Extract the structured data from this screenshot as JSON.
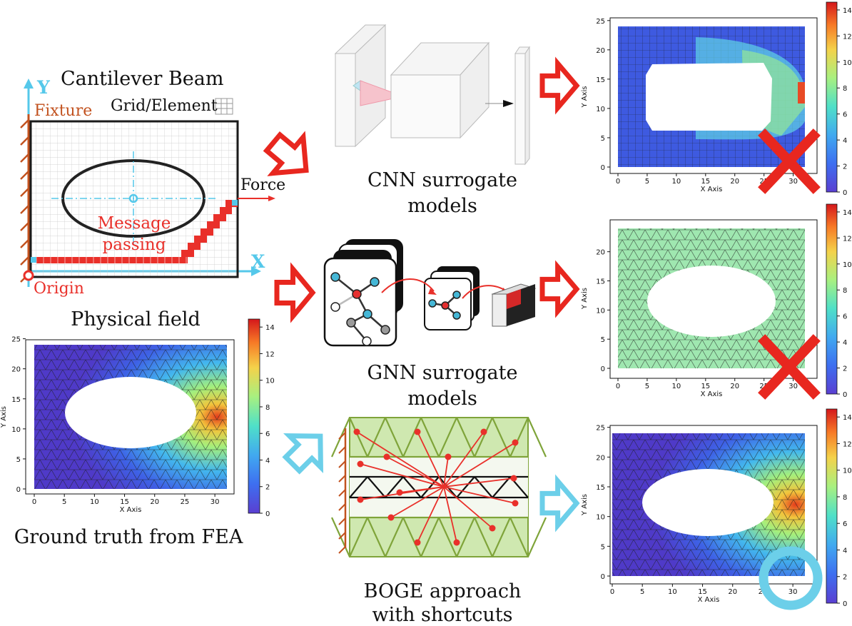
{
  "beam": {
    "title": "Cantilever Beam",
    "y_axis": "Y",
    "x_axis": "X",
    "fixture": "Fixture",
    "grid_element": "Grid/Element",
    "force": "Force",
    "message_line1": "Message",
    "message_line2": "passing",
    "origin": "Origin"
  },
  "physical_field": "Physical field",
  "ground_truth": "Ground truth from FEA",
  "cnn": {
    "line1": "CNN surrogate",
    "line2": "models"
  },
  "gnn": {
    "line1": "GNN surrogate",
    "line2": "models"
  },
  "boge": {
    "line1": "BOGE approach",
    "line2": "with shortcuts"
  },
  "colors": {
    "red_arrow": "#e8271f",
    "blue_arrow": "#6ccfe9",
    "beam_red": "#e9302a",
    "axis_blue": "#55c8ea",
    "fixture_brown": "#c2521f",
    "mesh_green": "#7fa43a"
  },
  "chart_data": [
    {
      "type": "heatmap",
      "description_id": "ground-truth-field",
      "xlabel": "X Axis",
      "ylabel": "Y Axis",
      "xticks": [
        0,
        5,
        10,
        15,
        20,
        25,
        30
      ],
      "yticks": [
        0,
        5,
        10,
        15,
        20,
        25
      ],
      "xlim": [
        0,
        32
      ],
      "ylim": [
        0,
        24
      ],
      "colorbar_ticks": [
        0,
        2,
        4,
        6,
        8,
        10,
        12,
        14
      ],
      "colorbar_range": [
        0,
        14.5
      ],
      "hole": {
        "cx": 16,
        "cy": 12,
        "rx": 10.5,
        "ry": 6
      },
      "mesh": "triangular"
    },
    {
      "type": "heatmap",
      "description_id": "cnn-prediction",
      "xlabel": "X Axis",
      "ylabel": "Y Axis",
      "xticks": [
        0,
        5,
        10,
        15,
        20,
        25,
        30
      ],
      "yticks": [
        0,
        5,
        10,
        15,
        20,
        25
      ],
      "colorbar_ticks": [
        0,
        2,
        4,
        6,
        8,
        10,
        12,
        14
      ],
      "mesh": "square",
      "mark": "cross"
    },
    {
      "type": "heatmap",
      "description_id": "gnn-prediction",
      "xlabel": "X Axis",
      "ylabel": "Y Axis",
      "xticks": [
        0,
        5,
        10,
        15,
        20,
        25,
        30
      ],
      "yticks": [
        0,
        5,
        10,
        15,
        20
      ],
      "colorbar_ticks": [
        0,
        2,
        4,
        6,
        8,
        10,
        12,
        14
      ],
      "mesh": "triangular",
      "mark": "cross"
    },
    {
      "type": "heatmap",
      "description_id": "boge-prediction",
      "xlabel": "X Axis",
      "ylabel": "Y Axis",
      "xticks": [
        0,
        5,
        10,
        15,
        20,
        25,
        30
      ],
      "yticks": [
        0,
        5,
        10,
        15,
        20,
        25
      ],
      "colorbar_ticks": [
        0,
        2,
        4,
        6,
        8,
        10,
        12,
        14
      ],
      "mesh": "triangular",
      "mark": "circle"
    }
  ]
}
